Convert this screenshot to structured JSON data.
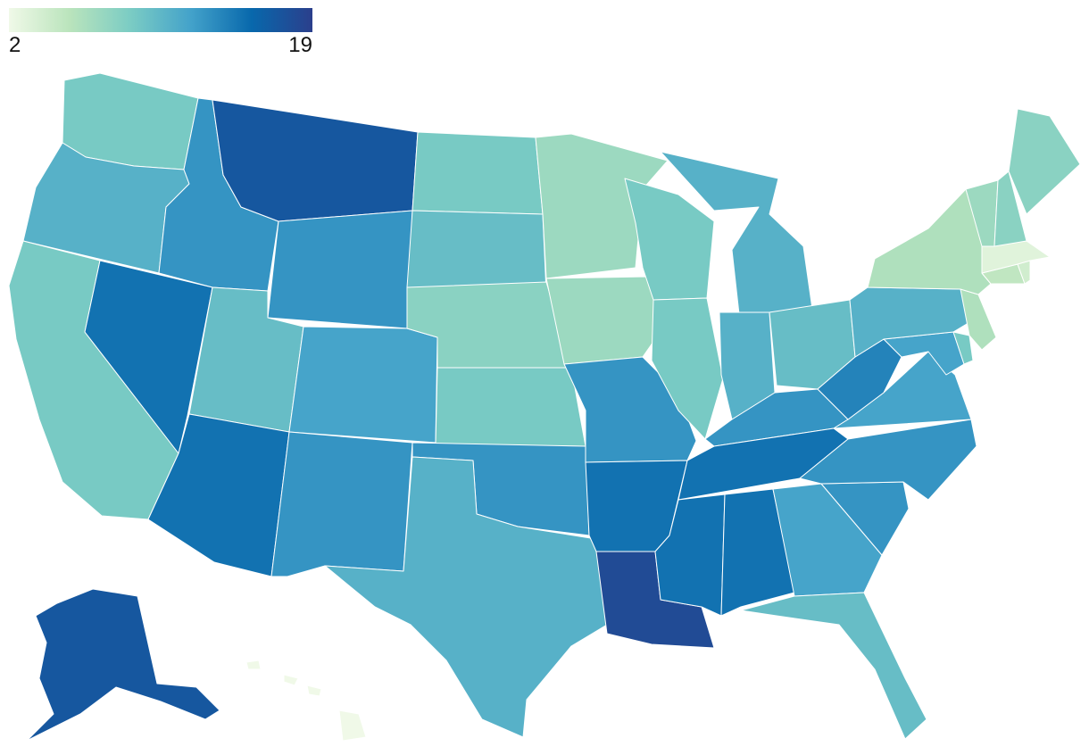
{
  "legend": {
    "min_label": "2",
    "max_label": "19",
    "min": 2,
    "max": 19,
    "colors": [
      "#f0f9e8",
      "#bae4bc",
      "#7bccc4",
      "#43a2ca",
      "#0868ac",
      "#2b3f8c"
    ]
  },
  "states": [
    {
      "id": "WA",
      "value": 9
    },
    {
      "id": "OR",
      "value": 11
    },
    {
      "id": "CA",
      "value": 9
    },
    {
      "id": "ID",
      "value": 13
    },
    {
      "id": "NV",
      "value": 15
    },
    {
      "id": "MT",
      "value": 17
    },
    {
      "id": "WY",
      "value": 13
    },
    {
      "id": "UT",
      "value": 10
    },
    {
      "id": "AZ",
      "value": 15
    },
    {
      "id": "CO",
      "value": 12
    },
    {
      "id": "NM",
      "value": 13
    },
    {
      "id": "ND",
      "value": 9
    },
    {
      "id": "SD",
      "value": 10
    },
    {
      "id": "NE",
      "value": 8
    },
    {
      "id": "KS",
      "value": 9
    },
    {
      "id": "OK",
      "value": 13
    },
    {
      "id": "TX",
      "value": 11
    },
    {
      "id": "MN",
      "value": 7
    },
    {
      "id": "IA",
      "value": 7
    },
    {
      "id": "MO",
      "value": 13
    },
    {
      "id": "AR",
      "value": 15
    },
    {
      "id": "LA",
      "value": 18
    },
    {
      "id": "WI",
      "value": 9
    },
    {
      "id": "IL",
      "value": 9
    },
    {
      "id": "MI",
      "value": 11
    },
    {
      "id": "IN",
      "value": 11
    },
    {
      "id": "OH",
      "value": 10
    },
    {
      "id": "KY",
      "value": 13
    },
    {
      "id": "TN",
      "value": 15
    },
    {
      "id": "MS",
      "value": 15
    },
    {
      "id": "AL",
      "value": 15
    },
    {
      "id": "GA",
      "value": 12
    },
    {
      "id": "FL",
      "value": 10
    },
    {
      "id": "SC",
      "value": 13
    },
    {
      "id": "NC",
      "value": 13
    },
    {
      "id": "VA",
      "value": 12
    },
    {
      "id": "WV",
      "value": 14
    },
    {
      "id": "MD",
      "value": 12
    },
    {
      "id": "DE",
      "value": 9
    },
    {
      "id": "NJ",
      "value": 6
    },
    {
      "id": "PA",
      "value": 11
    },
    {
      "id": "NY",
      "value": 6
    },
    {
      "id": "CT",
      "value": 5
    },
    {
      "id": "RI",
      "value": 4
    },
    {
      "id": "MA",
      "value": 3
    },
    {
      "id": "VT",
      "value": 7
    },
    {
      "id": "NH",
      "value": 8
    },
    {
      "id": "ME",
      "value": 8
    },
    {
      "id": "AK",
      "value": 17
    },
    {
      "id": "HI",
      "value": 2
    }
  ]
}
